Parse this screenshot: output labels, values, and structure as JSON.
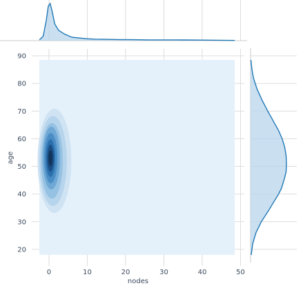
{
  "chart_data": {
    "type": "kde-jointplot",
    "xlabel": "nodes",
    "ylabel": "age",
    "x_ticks": [
      0,
      10,
      20,
      30,
      40,
      50
    ],
    "y_ticks": [
      20,
      30,
      40,
      50,
      60,
      70,
      80,
      90
    ],
    "xlim": [
      -4.5,
      51
    ],
    "ylim": [
      15,
      91
    ],
    "grid": true,
    "density_fill": "#e4f1fb",
    "joint_density": {
      "x_center": 0.4,
      "y_center": 53,
      "x_spread_sd": 1.3,
      "y_spread_sd": 6.5,
      "color": "#1f77b4",
      "x_range": [
        -2.5,
        48.5
      ],
      "y_range": [
        18,
        88.5
      ]
    },
    "x_marginal": {
      "range": [
        -2.5,
        48.5
      ],
      "points": [
        [
          -2.5,
          0.02
        ],
        [
          -1.5,
          0.12
        ],
        [
          -0.7,
          0.55
        ],
        [
          -0.2,
          0.92
        ],
        [
          0.3,
          1.0
        ],
        [
          0.8,
          0.8
        ],
        [
          1.5,
          0.45
        ],
        [
          2.5,
          0.28
        ],
        [
          4,
          0.18
        ],
        [
          6,
          0.09
        ],
        [
          8,
          0.07
        ],
        [
          10,
          0.05
        ],
        [
          12,
          0.04
        ],
        [
          15,
          0.035
        ],
        [
          18,
          0.03
        ],
        [
          22,
          0.025
        ],
        [
          26,
          0.02
        ],
        [
          30,
          0.02
        ],
        [
          35,
          0.018
        ],
        [
          40,
          0.015
        ],
        [
          44,
          0.012
        ],
        [
          48.5,
          0.005
        ]
      ]
    },
    "y_marginal": {
      "range": [
        18,
        88.5
      ],
      "points": [
        [
          18,
          0.02
        ],
        [
          22,
          0.06
        ],
        [
          26,
          0.15
        ],
        [
          30,
          0.3
        ],
        [
          34,
          0.5
        ],
        [
          37,
          0.64
        ],
        [
          40,
          0.78
        ],
        [
          42,
          0.86
        ],
        [
          45,
          0.93
        ],
        [
          48,
          0.99
        ],
        [
          51,
          1.0
        ],
        [
          54,
          0.99
        ],
        [
          57,
          0.95
        ],
        [
          60,
          0.88
        ],
        [
          63,
          0.78
        ],
        [
          66,
          0.65
        ],
        [
          70,
          0.48
        ],
        [
          74,
          0.32
        ],
        [
          78,
          0.18
        ],
        [
          82,
          0.08
        ],
        [
          85,
          0.04
        ],
        [
          88.5,
          0.01
        ]
      ]
    }
  }
}
